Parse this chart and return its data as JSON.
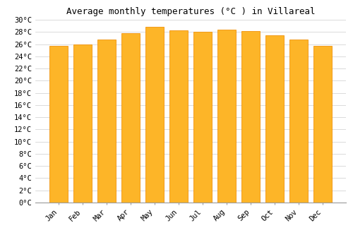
{
  "title": "Average monthly temperatures (°C ) in Villareal",
  "months": [
    "Jan",
    "Feb",
    "Mar",
    "Apr",
    "May",
    "Jun",
    "Jul",
    "Aug",
    "Sep",
    "Oct",
    "Nov",
    "Dec"
  ],
  "temperatures": [
    25.7,
    26.0,
    26.7,
    27.8,
    28.8,
    28.3,
    28.0,
    28.4,
    28.2,
    27.5,
    26.8,
    25.7
  ],
  "bar_color_face": "#FDB528",
  "bar_color_edge": "#F0920A",
  "ylim": [
    0,
    30
  ],
  "ytick_step": 2,
  "background_color": "#ffffff",
  "grid_color": "#cccccc",
  "title_fontsize": 9,
  "tick_fontsize": 7.5,
  "font_family": "monospace"
}
